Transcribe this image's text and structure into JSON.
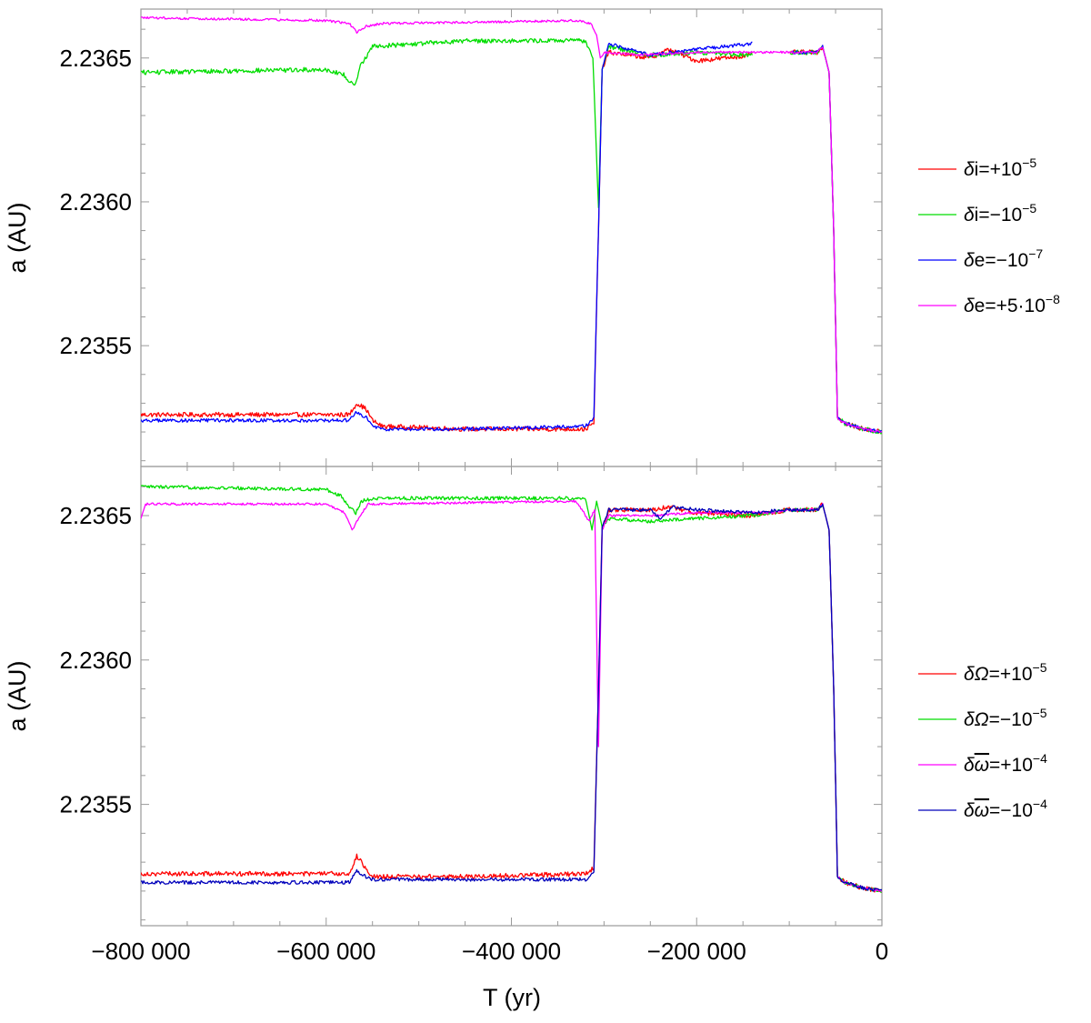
{
  "figure": {
    "xlabel": "T (yr)",
    "x_tick_labels": [
      "−800 000",
      "−600 000",
      "−400 000",
      "−200 000",
      "0"
    ]
  },
  "chart_data": [
    {
      "type": "line",
      "title": "",
      "xlabel": "",
      "ylabel": "a (AU)",
      "xlim": [
        -800000,
        0
      ],
      "ylim": [
        2.23508,
        2.23667
      ],
      "x_ticks": [
        -800000,
        -600000,
        -400000,
        -200000,
        0
      ],
      "y_ticks": [
        2.2355,
        2.236,
        2.2365
      ],
      "y_tick_labels": [
        "2.2355",
        "2.2360",
        "2.2365"
      ],
      "grid": false,
      "legend_position": "right",
      "series": [
        {
          "name": "δi=+10⁻⁵",
          "legend": {
            "sym": "δ",
            "bar": false,
            "base": "i=+10",
            "sup": "−5"
          },
          "color": "#ff0000",
          "noise": 8e-06,
          "points": [
            [
              -800000,
              2.23526
            ],
            [
              -575000,
              2.23526
            ],
            [
              -567000,
              2.2353
            ],
            [
              -557000,
              2.23528
            ],
            [
              -550000,
              2.23524
            ],
            [
              -540000,
              2.23522
            ],
            [
              -450000,
              2.23521
            ],
            [
              -320000,
              2.23521
            ],
            [
              -311000,
              2.23523
            ],
            [
              -306000,
              2.2359
            ],
            [
              -302000,
              2.23646
            ],
            [
              -295000,
              2.23652
            ],
            [
              -250000,
              2.2365
            ],
            [
              -230000,
              2.23653
            ],
            [
              -200000,
              2.23649
            ],
            [
              -140000,
              2.23651
            ],
            [
              -140000,
              null
            ],
            [
              -100000,
              2.23652
            ],
            [
              -70000,
              2.23652
            ],
            [
              -64000,
              2.23654
            ],
            [
              -57000,
              2.23645
            ],
            [
              -52000,
              2.2359
            ],
            [
              -48000,
              2.23525
            ],
            [
              -40000,
              2.23523
            ],
            [
              -20000,
              2.23521
            ],
            [
              0,
              2.2352
            ]
          ]
        },
        {
          "name": "δi=−10⁻⁵",
          "legend": {
            "sym": "δ",
            "bar": false,
            "base": "i=−10",
            "sup": "−5"
          },
          "color": "#00dd00",
          "noise": 8e-06,
          "points": [
            [
              -800000,
              2.23645
            ],
            [
              -600000,
              2.23646
            ],
            [
              -580000,
              2.23644
            ],
            [
              -570000,
              2.2364
            ],
            [
              -562000,
              2.23648
            ],
            [
              -550000,
              2.23654
            ],
            [
              -450000,
              2.23656
            ],
            [
              -320000,
              2.23656
            ],
            [
              -312000,
              2.2365
            ],
            [
              -306000,
              2.23598
            ],
            [
              -302000,
              2.23646
            ],
            [
              -295000,
              2.23654
            ],
            [
              -250000,
              2.23651
            ],
            [
              -200000,
              2.23652
            ],
            [
              -140000,
              2.23651
            ],
            [
              -140000,
              null
            ],
            [
              -100000,
              2.23652
            ],
            [
              -70000,
              2.23652
            ],
            [
              -64000,
              2.23654
            ],
            [
              -57000,
              2.23645
            ],
            [
              -52000,
              2.2359
            ],
            [
              -48000,
              2.23525
            ],
            [
              -40000,
              2.23523
            ],
            [
              -20000,
              2.23521
            ],
            [
              0,
              2.2352
            ]
          ]
        },
        {
          "name": "δe=−10⁻⁷",
          "legend": {
            "sym": "δ",
            "bar": false,
            "base": "e=−10",
            "sup": "−7"
          },
          "color": "#0000ff",
          "noise": 6e-06,
          "points": [
            [
              -800000,
              2.23524
            ],
            [
              -575000,
              2.23524
            ],
            [
              -567000,
              2.23527
            ],
            [
              -557000,
              2.23525
            ],
            [
              -550000,
              2.23522
            ],
            [
              -540000,
              2.23521
            ],
            [
              -450000,
              2.23521
            ],
            [
              -320000,
              2.23522
            ],
            [
              -311000,
              2.23525
            ],
            [
              -306000,
              2.2359
            ],
            [
              -302000,
              2.23646
            ],
            [
              -295000,
              2.23655
            ],
            [
              -250000,
              2.23651
            ],
            [
              -200000,
              2.23653
            ],
            [
              -140000,
              2.23655
            ],
            [
              -140000,
              null
            ],
            [
              -100000,
              2.23652
            ],
            [
              -70000,
              2.23652
            ],
            [
              -64000,
              2.23654
            ],
            [
              -57000,
              2.23645
            ],
            [
              -52000,
              2.2359
            ],
            [
              -48000,
              2.23525
            ],
            [
              -40000,
              2.23523
            ],
            [
              -20000,
              2.23521
            ],
            [
              0,
              2.2352
            ]
          ]
        },
        {
          "name": "δe=+5·10⁻⁸",
          "legend": {
            "sym": "δ",
            "bar": false,
            "base": "e=+5·10",
            "sup": "−8"
          },
          "color": "#ff00ff",
          "noise": 4e-06,
          "points": [
            [
              -800000,
              2.23664
            ],
            [
              -600000,
              2.23663
            ],
            [
              -575000,
              2.23662
            ],
            [
              -567000,
              2.23659
            ],
            [
              -557000,
              2.23661
            ],
            [
              -540000,
              2.23662
            ],
            [
              -330000,
              2.23663
            ],
            [
              -314000,
              2.23662
            ],
            [
              -308000,
              2.23658
            ],
            [
              -304000,
              2.2365
            ],
            [
              -300000,
              2.23652
            ],
            [
              -260000,
              2.23651
            ],
            [
              -200000,
              2.23652
            ],
            [
              -70000,
              2.23652
            ],
            [
              -64000,
              2.23654
            ],
            [
              -57000,
              2.23645
            ],
            [
              -52000,
              2.2359
            ],
            [
              -48000,
              2.23525
            ],
            [
              -40000,
              2.23523
            ],
            [
              -20000,
              2.23521
            ],
            [
              0,
              2.2352
            ]
          ]
        }
      ]
    },
    {
      "type": "line",
      "title": "",
      "xlabel": "T (yr)",
      "ylabel": "a (AU)",
      "xlim": [
        -800000,
        0
      ],
      "ylim": [
        2.23508,
        2.23667
      ],
      "x_ticks": [
        -800000,
        -600000,
        -400000,
        -200000,
        0
      ],
      "y_ticks": [
        2.2355,
        2.236,
        2.2365
      ],
      "y_tick_labels": [
        "2.2355",
        "2.2360",
        "2.2365"
      ],
      "grid": false,
      "legend_position": "right",
      "series": [
        {
          "name": "δΩ=+10⁻⁵",
          "legend": {
            "sym": "δΩ",
            "bar": false,
            "base": "=+10",
            "sup": "−5"
          },
          "color": "#ff0000",
          "noise": 8e-06,
          "points": [
            [
              -800000,
              2.23526
            ],
            [
              -575000,
              2.23526
            ],
            [
              -567000,
              2.23532
            ],
            [
              -557000,
              2.23528
            ],
            [
              -550000,
              2.23525
            ],
            [
              -450000,
              2.23525
            ],
            [
              -320000,
              2.23526
            ],
            [
              -311000,
              2.23528
            ],
            [
              -306000,
              2.2359
            ],
            [
              -302000,
              2.23646
            ],
            [
              -295000,
              2.23652
            ],
            [
              -250000,
              2.23652
            ],
            [
              -230000,
              2.23653
            ],
            [
              -200000,
              2.23651
            ],
            [
              -140000,
              2.2365
            ],
            [
              -120000,
              2.23651
            ],
            [
              -100000,
              2.23652
            ],
            [
              -70000,
              2.23652
            ],
            [
              -64000,
              2.23654
            ],
            [
              -57000,
              2.23645
            ],
            [
              -52000,
              2.2359
            ],
            [
              -48000,
              2.23525
            ],
            [
              -40000,
              2.23523
            ],
            [
              -20000,
              2.23521
            ],
            [
              0,
              2.2352
            ]
          ]
        },
        {
          "name": "δΩ=−10⁻⁵",
          "legend": {
            "sym": "δΩ",
            "bar": false,
            "base": "=−10",
            "sup": "−5"
          },
          "color": "#00dd00",
          "noise": 6e-06,
          "points": [
            [
              -800000,
              2.2366
            ],
            [
              -600000,
              2.23659
            ],
            [
              -585000,
              2.23657
            ],
            [
              -575000,
              2.23653
            ],
            [
              -568000,
              2.23651
            ],
            [
              -562000,
              2.23655
            ],
            [
              -550000,
              2.23656
            ],
            [
              -450000,
              2.23656
            ],
            [
              -320000,
              2.23656
            ],
            [
              -313000,
              2.23645
            ],
            [
              -308000,
              2.23655
            ],
            [
              -302000,
              2.23646
            ],
            [
              -295000,
              2.23649
            ],
            [
              -250000,
              2.23648
            ],
            [
              -200000,
              2.23649
            ],
            [
              -140000,
              2.2365
            ],
            [
              -120000,
              2.23651
            ],
            [
              -100000,
              2.23652
            ],
            [
              -70000,
              2.23652
            ],
            [
              -64000,
              2.23654
            ],
            [
              -57000,
              2.23645
            ],
            [
              -52000,
              2.2359
            ],
            [
              -48000,
              2.23525
            ],
            [
              -40000,
              2.23523
            ],
            [
              -20000,
              2.23521
            ],
            [
              0,
              2.2352
            ]
          ]
        },
        {
          "name": "δω̅=+10⁻⁴",
          "legend": {
            "sym": "δ",
            "bar": true,
            "base": "=+10",
            "sup": "−4"
          },
          "color": "#ff00ff",
          "noise": 4e-06,
          "points": [
            [
              -800000,
              2.23649
            ],
            [
              -795000,
              2.23654
            ],
            [
              -600000,
              2.23654
            ],
            [
              -580000,
              2.23651
            ],
            [
              -572000,
              2.23645
            ],
            [
              -565000,
              2.23649
            ],
            [
              -555000,
              2.23654
            ],
            [
              -330000,
              2.23655
            ],
            [
              -316000,
              2.23648
            ],
            [
              -310000,
              2.23652
            ],
            [
              -306000,
              2.2357
            ],
            [
              -302000,
              2.23645
            ],
            [
              -295000,
              2.2365
            ],
            [
              -250000,
              2.2365
            ],
            [
              -200000,
              2.23651
            ],
            [
              -120000,
              2.23651
            ],
            [
              -100000,
              2.23652
            ],
            [
              -70000,
              2.23652
            ],
            [
              -64000,
              2.23654
            ],
            [
              -57000,
              2.23645
            ],
            [
              -52000,
              2.2359
            ],
            [
              -48000,
              2.23525
            ],
            [
              -40000,
              2.23523
            ],
            [
              -20000,
              2.23521
            ],
            [
              0,
              2.2352
            ]
          ]
        },
        {
          "name": "δω̅=−10⁻⁴",
          "legend": {
            "sym": "δ",
            "bar": true,
            "base": "=−10",
            "sup": "−4"
          },
          "color": "#0000bb",
          "noise": 6e-06,
          "points": [
            [
              -800000,
              2.23523
            ],
            [
              -575000,
              2.23523
            ],
            [
              -567000,
              2.23527
            ],
            [
              -557000,
              2.23525
            ],
            [
              -550000,
              2.23524
            ],
            [
              -450000,
              2.23524
            ],
            [
              -320000,
              2.23524
            ],
            [
              -311000,
              2.23526
            ],
            [
              -306000,
              2.2359
            ],
            [
              -302000,
              2.23646
            ],
            [
              -295000,
              2.23652
            ],
            [
              -250000,
              2.23652
            ],
            [
              -240000,
              2.23649
            ],
            [
              -225000,
              2.23653
            ],
            [
              -200000,
              2.23652
            ],
            [
              -140000,
              2.23651
            ],
            [
              -100000,
              2.23652
            ],
            [
              -70000,
              2.23652
            ],
            [
              -64000,
              2.23654
            ],
            [
              -57000,
              2.23645
            ],
            [
              -52000,
              2.2359
            ],
            [
              -48000,
              2.23525
            ],
            [
              -40000,
              2.23523
            ],
            [
              -20000,
              2.23521
            ],
            [
              0,
              2.2352
            ]
          ]
        }
      ]
    }
  ]
}
